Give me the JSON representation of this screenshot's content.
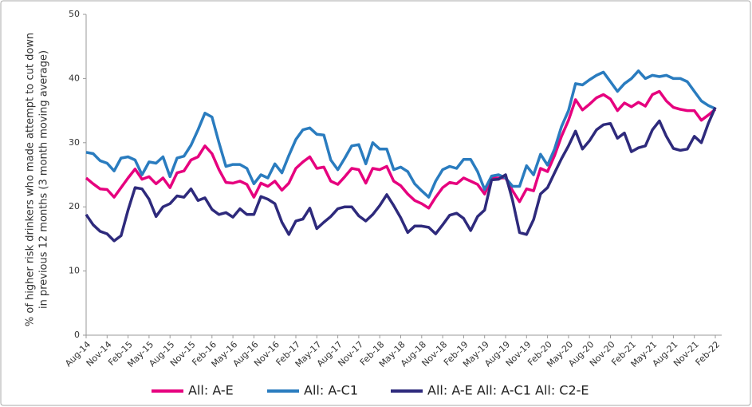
{
  "chart_data": {
    "type": "line",
    "ylabel": [
      "% of higher risk drinkers who made attempt to cut down",
      "in previous 12 months (3 month moving average)"
    ],
    "categories": [
      "Aug-14",
      null,
      null,
      "Nov-14",
      null,
      null,
      "Feb-15",
      null,
      null,
      "May-15",
      null,
      null,
      "Aug-15",
      null,
      null,
      "Nov-15",
      null,
      null,
      "Feb-16",
      null,
      null,
      "May-16",
      null,
      null,
      "Aug-16",
      null,
      null,
      "Nov-16",
      null,
      null,
      "Feb-17",
      null,
      null,
      "May-17",
      null,
      null,
      "Aug-17",
      null,
      null,
      "Nov-17",
      null,
      null,
      "Feb-18",
      null,
      null,
      "May-18",
      null,
      null,
      "Aug-18",
      null,
      null,
      "Nov-18",
      null,
      null,
      "Feb-19",
      null,
      null,
      "May-19",
      null,
      null,
      "Aug-19",
      null,
      null,
      "Nov-19",
      null,
      null,
      "Feb-20",
      null,
      null,
      "May-20",
      null,
      null,
      "Aug-20",
      null,
      null,
      "Nov-20",
      null,
      null,
      "Feb-21",
      null,
      null,
      "May-21",
      null,
      null,
      "Aug-21",
      null,
      null,
      "Nov-21",
      null,
      null,
      "Feb-22"
    ],
    "series": [
      {
        "name": "All: A-E",
        "color": "#e6007e",
        "values": [
          24.5,
          23.6,
          22.8,
          22.7,
          21.5,
          23.0,
          24.5,
          25.9,
          24.3,
          24.7,
          23.6,
          24.5,
          23.0,
          25.3,
          25.6,
          27.3,
          27.8,
          29.5,
          28.3,
          25.8,
          23.8,
          23.7,
          24.0,
          23.5,
          21.5,
          23.7,
          23.2,
          24.0,
          22.6,
          23.7,
          26.0,
          27.0,
          27.8,
          26.0,
          26.2,
          24.0,
          23.5,
          24.7,
          26.0,
          25.8,
          23.7,
          26.0,
          25.8,
          26.3,
          24.0,
          23.3,
          22.0,
          21.0,
          20.5,
          19.8,
          21.5,
          23.0,
          23.8,
          23.6,
          24.5,
          24.0,
          23.5,
          22.0,
          24.5,
          24.5,
          24.5,
          22.5,
          20.8,
          22.8,
          22.5,
          26.0,
          25.5,
          28.0,
          31.0,
          33.5,
          36.7,
          35.1,
          36.0,
          37.0,
          37.5,
          36.8,
          35.0,
          36.2,
          35.6,
          36.3,
          35.7,
          37.5,
          38.0,
          36.5,
          35.5,
          35.2,
          35.0,
          35.0,
          33.5,
          34.3,
          35.2
        ]
      },
      {
        "name": "All: A-C1",
        "color": "#2a7cbf",
        "values": [
          28.5,
          28.3,
          27.2,
          26.8,
          25.6,
          27.6,
          27.8,
          27.3,
          25.0,
          27.0,
          26.8,
          27.8,
          24.7,
          27.6,
          27.9,
          29.6,
          32.0,
          34.6,
          34.0,
          30.0,
          26.3,
          26.6,
          26.6,
          26.0,
          23.6,
          25.0,
          24.5,
          26.7,
          25.3,
          28.0,
          30.5,
          32.0,
          32.3,
          31.3,
          31.2,
          27.3,
          25.8,
          27.6,
          29.5,
          29.7,
          26.7,
          30.0,
          29.0,
          29.0,
          25.8,
          26.2,
          25.5,
          23.6,
          22.5,
          21.5,
          24.0,
          25.8,
          26.3,
          26.0,
          27.4,
          27.4,
          25.5,
          22.7,
          24.8,
          25.0,
          24.5,
          23.2,
          23.2,
          26.4,
          25.0,
          28.2,
          26.5,
          29.0,
          32.5,
          35.0,
          39.2,
          39.0,
          39.8,
          40.5,
          41.0,
          39.5,
          38.0,
          39.2,
          40.0,
          41.2,
          40.0,
          40.5,
          40.3,
          40.5,
          40.0,
          40.0,
          39.5,
          38.0,
          36.5,
          35.8,
          35.3
        ]
      },
      {
        "name": "All: A-E All: A-C1 All: C2-E",
        "color": "#2e2a7c",
        "values": [
          18.8,
          17.2,
          16.2,
          15.8,
          14.7,
          15.5,
          19.5,
          23.0,
          22.8,
          21.2,
          18.5,
          20.0,
          20.5,
          21.7,
          21.5,
          22.8,
          21.0,
          21.4,
          19.6,
          18.8,
          19.1,
          18.4,
          19.7,
          18.8,
          18.8,
          21.6,
          21.2,
          20.5,
          17.6,
          15.7,
          17.8,
          18.1,
          19.8,
          16.6,
          17.6,
          18.5,
          19.7,
          20.0,
          20.0,
          18.6,
          17.8,
          18.8,
          20.2,
          21.9,
          20.2,
          18.3,
          16.0,
          17.0,
          17.0,
          16.8,
          15.8,
          17.2,
          18.7,
          19.0,
          18.2,
          16.3,
          18.5,
          19.5,
          24.2,
          24.3,
          25.0,
          21.0,
          16.0,
          15.7,
          18.0,
          22.0,
          23.0,
          25.3,
          27.5,
          29.5,
          31.8,
          29.0,
          30.3,
          32.0,
          32.8,
          33.0,
          30.7,
          31.5,
          28.6,
          29.2,
          29.5,
          32.0,
          33.4,
          31.0,
          29.1,
          28.8,
          29.0,
          31.0,
          30.0,
          33.0,
          35.5
        ]
      }
    ],
    "ylim": [
      0,
      50
    ],
    "yticks": [
      0,
      10,
      20,
      30,
      40,
      50
    ],
    "grid": false,
    "legend": "bottom"
  }
}
